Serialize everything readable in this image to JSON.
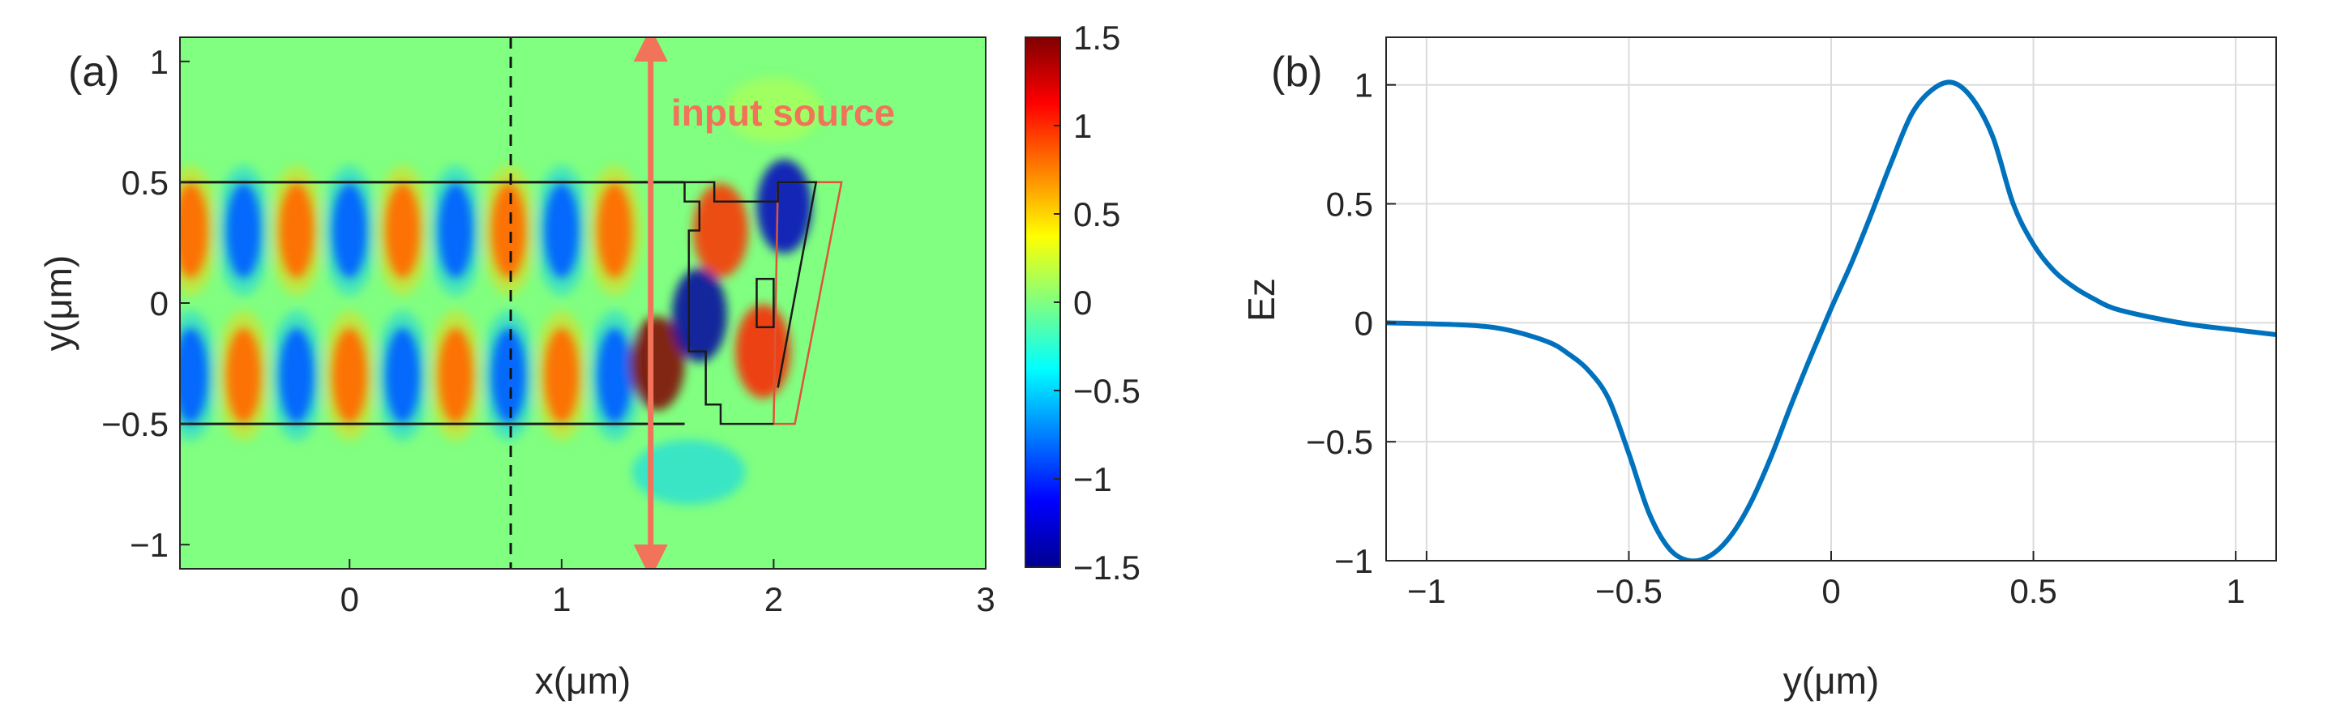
{
  "colors": {
    "line": "#0072BD",
    "source_arrow": "#F0735A",
    "grid": "#dcdcdc",
    "axis": "#262626",
    "wg_outline": "#1a1a1a",
    "coupler_outline": "#e0533a"
  },
  "chart_data": [
    {
      "type": "heatmap",
      "panel_label": "(a)",
      "title": "",
      "xlabel": "x(μm)",
      "ylabel": "y(μm)",
      "xlim": [
        -0.8,
        3.0
      ],
      "ylim": [
        -1.1,
        1.1
      ],
      "xticks": [
        0,
        1,
        2,
        3
      ],
      "xtick_labels": [
        "0",
        "1",
        "2",
        "3"
      ],
      "yticks": [
        -1,
        -0.5,
        0,
        0.5,
        1
      ],
      "ytick_labels": [
        "−1",
        "−0.5",
        "0",
        "0.5",
        "1"
      ],
      "colorbar": {
        "colormap": "jet",
        "clim": [
          -1.5,
          1.5
        ],
        "ticks": [
          -1.5,
          -1,
          -0.5,
          0,
          0.5,
          1,
          1.5
        ],
        "tick_labels": [
          "−1.5",
          "−1",
          "−0.5",
          "0",
          "0.5",
          "1",
          "1.5"
        ]
      },
      "waveguide": {
        "y_bounds": [
          -0.5,
          0.5
        ],
        "x_end": 2.2
      },
      "monitor_line_x": 0.76,
      "source": {
        "x": 1.42,
        "y_range": [
          -1.07,
          1.07
        ],
        "label": "input source"
      },
      "field_description": "Ez field of antisymmetric mode, two lobes centered at y=±0.3 μm, period ≈0.5 μm along x"
    },
    {
      "type": "line",
      "panel_label": "(b)",
      "title": "",
      "xlabel": "y(μm)",
      "ylabel": "Ez",
      "xlim": [
        -1.1,
        1.1
      ],
      "ylim": [
        -1.0,
        1.2
      ],
      "xticks": [
        -1,
        -0.5,
        0,
        0.5,
        1
      ],
      "xtick_labels": [
        "−1",
        "−0.5",
        "0",
        "0.5",
        "1"
      ],
      "yticks": [
        -1,
        -0.5,
        0,
        0.5,
        1
      ],
      "ytick_labels": [
        "−1",
        "−0.5",
        "0",
        "0.5",
        "1"
      ],
      "grid": true,
      "series": [
        {
          "name": "Ez",
          "x": [
            -1.1,
            -0.9,
            -0.8,
            -0.7,
            -0.65,
            -0.6,
            -0.55,
            -0.5,
            -0.45,
            -0.4,
            -0.35,
            -0.3,
            -0.25,
            -0.2,
            -0.15,
            -0.1,
            -0.05,
            0.0,
            0.05,
            0.1,
            0.15,
            0.2,
            0.25,
            0.3,
            0.35,
            0.4,
            0.45,
            0.5,
            0.55,
            0.6,
            0.65,
            0.7,
            0.8,
            0.9,
            1.0,
            1.1
          ],
          "y": [
            0.0,
            -0.01,
            -0.03,
            -0.08,
            -0.13,
            -0.2,
            -0.32,
            -0.55,
            -0.8,
            -0.95,
            -1.0,
            -0.98,
            -0.9,
            -0.76,
            -0.57,
            -0.35,
            -0.14,
            0.06,
            0.25,
            0.46,
            0.68,
            0.88,
            0.98,
            1.01,
            0.94,
            0.78,
            0.5,
            0.33,
            0.22,
            0.15,
            0.1,
            0.06,
            0.02,
            -0.01,
            -0.03,
            -0.05
          ]
        }
      ]
    }
  ]
}
